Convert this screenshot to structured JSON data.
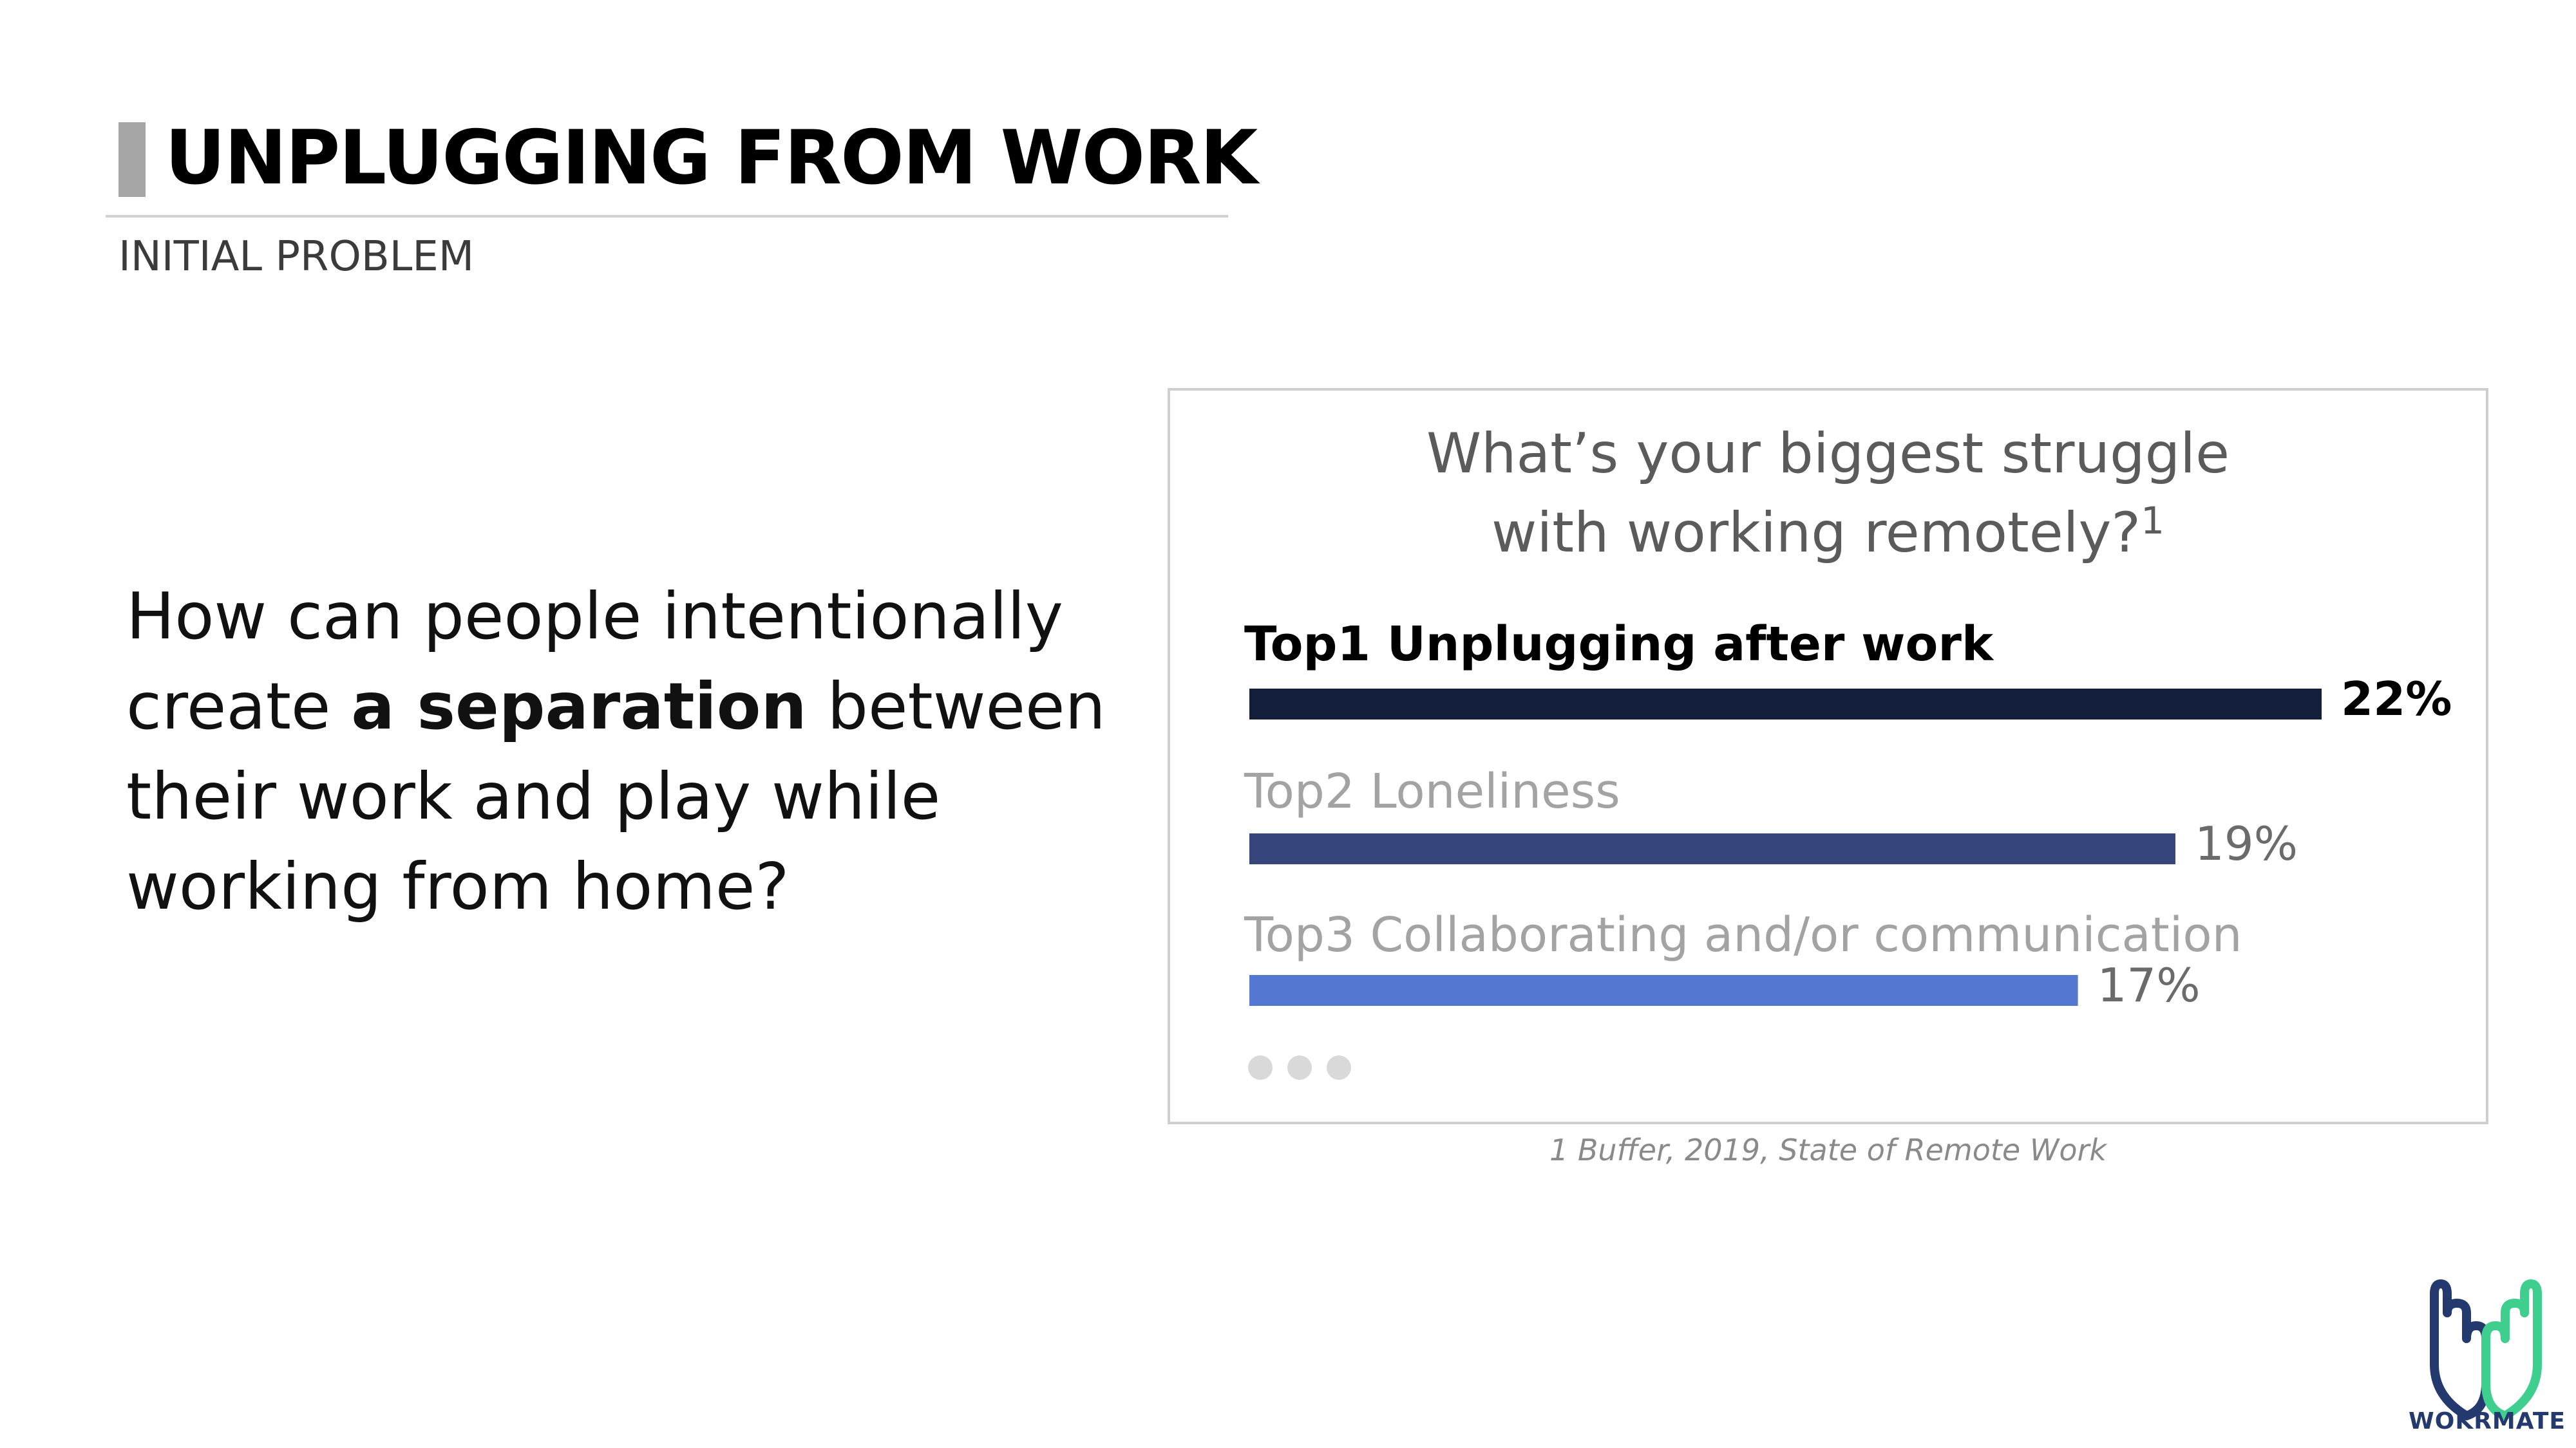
{
  "slide": {
    "title": "UNPLUGGING FROM WORK",
    "subtitle": "INITIAL PROBLEM",
    "question_before": "How can people intentionally create ",
    "question_bold": "a separation",
    "question_after": " between their work and play while working from home?"
  },
  "chart_data": {
    "type": "bar",
    "orientation": "horizontal",
    "title_line1": "What’s your biggest struggle",
    "title_line2": "with working remotely?",
    "title_footnote": "1",
    "categories": [
      "Top1 Unplugging after work",
      "Top2 Loneliness",
      "Top3 Collaborating and/or communication"
    ],
    "values": [
      22,
      19,
      17
    ],
    "value_labels": [
      "22%",
      "19%",
      "17%"
    ],
    "colors": [
      "#131f3a",
      "#36467c",
      "#5477d2"
    ],
    "more_indicator": "three-dots",
    "source": "1 Buffer, 2019, State of Remote Work"
  },
  "logo": {
    "text": "WOKRMATE",
    "icon": "two-hands-logo-icon",
    "colors": [
      "#243a6e",
      "#3ecf8e"
    ]
  }
}
